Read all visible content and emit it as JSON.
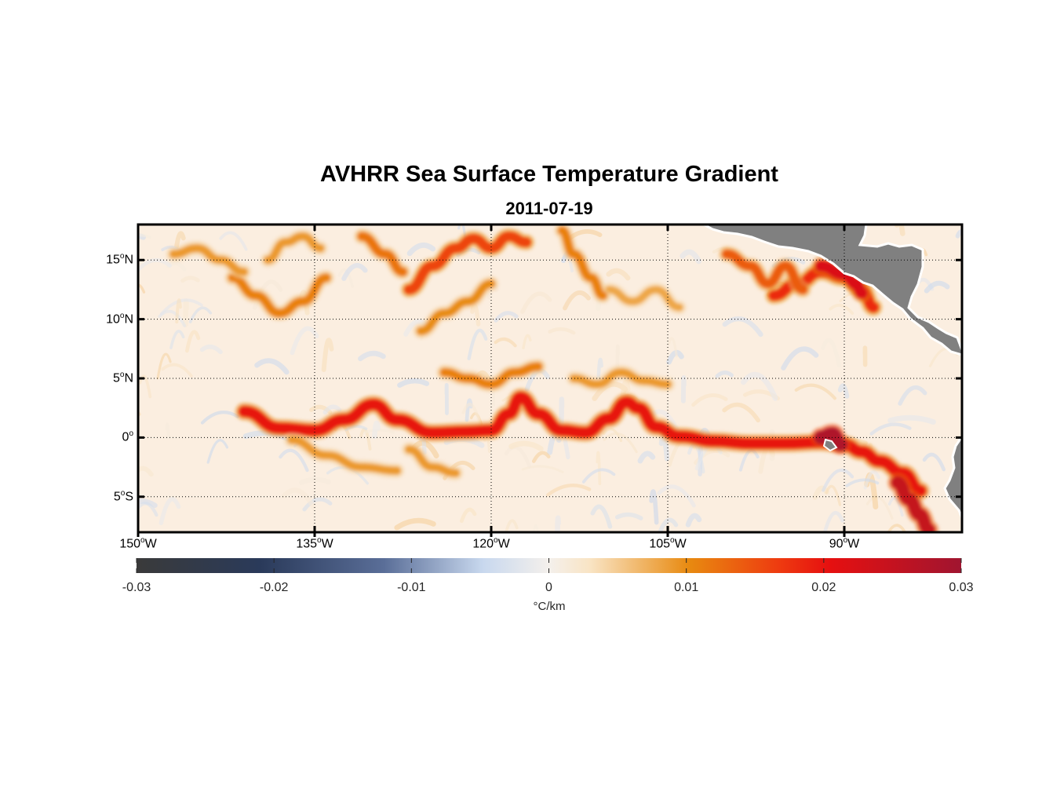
{
  "title": "AVHRR Sea Surface Temperature Gradient",
  "subtitle": "2011-07-19",
  "map": {
    "projection": "equirectangular",
    "lon_range": [
      -150,
      -80
    ],
    "lat_range": [
      -8,
      18
    ],
    "grid": "dotted",
    "land_color": "#808080",
    "lat_ticks": [
      {
        "value": 15,
        "deg": "15",
        "hemi": "N"
      },
      {
        "value": 10,
        "deg": "10",
        "hemi": "N"
      },
      {
        "value": 5,
        "deg": "5",
        "hemi": "N"
      },
      {
        "value": 0,
        "deg": "0",
        "hemi": ""
      },
      {
        "value": -5,
        "deg": "5",
        "hemi": "S"
      }
    ],
    "lon_ticks": [
      {
        "value": -150,
        "deg": "150",
        "hemi": "W"
      },
      {
        "value": -135,
        "deg": "135",
        "hemi": "W"
      },
      {
        "value": -120,
        "deg": "120",
        "hemi": "W"
      },
      {
        "value": -105,
        "deg": "105",
        "hemi": "W"
      },
      {
        "value": -90,
        "deg": "90",
        "hemi": "W"
      }
    ],
    "fronts": [
      {
        "name": "equatorial-front",
        "lon": [
          -141,
          -138,
          -135,
          -132.5,
          -130,
          -128,
          -125,
          -122,
          -120,
          -118.5,
          -117.5,
          -116,
          -114,
          -112,
          -110,
          -108.5,
          -107.5,
          -106,
          -104,
          -101,
          -98,
          -95,
          -92,
          -90,
          -88.5,
          -87,
          -85,
          -83.5
        ],
        "lat": [
          2.2,
          0.8,
          0.6,
          1.5,
          2.8,
          1.5,
          0.4,
          0.5,
          0.6,
          2,
          3.4,
          2,
          0.6,
          0.4,
          1.6,
          3,
          2.5,
          0.9,
          0.1,
          -0.3,
          -0.5,
          -0.5,
          -0.4,
          -0.6,
          -1.2,
          -2,
          -3,
          -4.5
        ],
        "strength": 0.02
      },
      {
        "name": "south-front",
        "lon": [
          -85.5,
          -84.5,
          -83.6,
          -82.8
        ],
        "lat": [
          -3.8,
          -5.2,
          -6.5,
          -7.8
        ],
        "strength": 0.025
      },
      {
        "name": "galapagos-front",
        "lon": [
          -92,
          -91,
          -90.3
        ],
        "lat": [
          0,
          0.3,
          -0.6
        ],
        "strength": 0.028
      },
      {
        "name": "north-front-1",
        "lon": [
          -127,
          -125,
          -123,
          -121.5,
          -120,
          -118.5,
          -117
        ],
        "lat": [
          12.5,
          14.5,
          16,
          16.8,
          16,
          17,
          16.5
        ],
        "strength": 0.016
      },
      {
        "name": "north-front-2",
        "lon": [
          -96,
          -94,
          -92,
          -90,
          -88.5,
          -87.5
        ],
        "lat": [
          12,
          13,
          14,
          13.5,
          12.5,
          11
        ],
        "strength": 0.018
      },
      {
        "name": "north-front-3",
        "lon": [
          -100,
          -98,
          -96.5,
          -95,
          -93.5
        ],
        "lat": [
          15.5,
          14.5,
          13,
          14.5,
          12.5
        ],
        "strength": 0.014
      },
      {
        "name": "north-front-4",
        "lon": [
          -92,
          -90,
          -89,
          -88.5
        ],
        "lat": [
          14.5,
          13.8,
          13,
          12.2
        ],
        "strength": 0.022
      },
      {
        "name": "mid-front-1",
        "lon": [
          -142,
          -140,
          -138,
          -136,
          -134
        ],
        "lat": [
          13.5,
          12,
          10.5,
          11.5,
          13.5
        ],
        "strength": 0.011
      },
      {
        "name": "mid-front-2",
        "lon": [
          -126,
          -124,
          -122,
          -120
        ],
        "lat": [
          9,
          10.5,
          11.5,
          13
        ],
        "strength": 0.01
      },
      {
        "name": "mid-front-3",
        "lon": [
          -124,
          -122,
          -120,
          -118,
          -116
        ],
        "lat": [
          5.5,
          5,
          4.5,
          5.5,
          6
        ],
        "strength": 0.011
      },
      {
        "name": "mid-front-4",
        "lon": [
          -113,
          -111,
          -109,
          -107,
          -105
        ],
        "lat": [
          5,
          4.5,
          5.5,
          4.8,
          4.5
        ],
        "strength": 0.009
      },
      {
        "name": "mid-front-5",
        "lon": [
          -147,
          -145,
          -143,
          -141
        ],
        "lat": [
          15.5,
          16,
          15,
          14
        ],
        "strength": 0.009
      },
      {
        "name": "mid-front-6",
        "lon": [
          -139,
          -137.5,
          -136,
          -134.5
        ],
        "lat": [
          15,
          16.5,
          17,
          16
        ],
        "strength": 0.009
      },
      {
        "name": "mid-front-7",
        "lon": [
          -110,
          -108,
          -106,
          -104
        ],
        "lat": [
          12.5,
          11.5,
          12.5,
          11
        ],
        "strength": 0.008
      },
      {
        "name": "south-eddy-1",
        "lon": [
          -137,
          -134,
          -131,
          -128
        ],
        "lat": [
          -0.2,
          -1.5,
          -2.5,
          -2.8
        ],
        "strength": 0.009
      },
      {
        "name": "south-eddy-2",
        "lon": [
          -127,
          -125,
          -123
        ],
        "lat": [
          -1,
          -2.5,
          -3
        ],
        "strength": 0.009
      },
      {
        "name": "north-front-5",
        "lon": [
          -131,
          -129,
          -127.5
        ],
        "lat": [
          17,
          15.5,
          14
        ],
        "strength": 0.012
      },
      {
        "name": "north-front-6",
        "lon": [
          -114,
          -113,
          -111.5,
          -110.5
        ],
        "lat": [
          17.5,
          15.5,
          13.5,
          12
        ],
        "strength": 0.011
      }
    ]
  },
  "colorbar": {
    "min": -0.03,
    "max": 0.03,
    "tick_values": [
      -0.03,
      -0.02,
      -0.01,
      0,
      0.01,
      0.02,
      0.03
    ],
    "tick_labels": [
      "-0.03",
      "-0.02",
      "-0.01",
      "0",
      "0.01",
      "0.02",
      "0.03"
    ],
    "units": "°C/km",
    "colormap_stops": [
      {
        "v": 0.0,
        "c": "#3a3a3a"
      },
      {
        "v": 0.15,
        "c": "#2a3a5a"
      },
      {
        "v": 0.3,
        "c": "#5a6e98"
      },
      {
        "v": 0.42,
        "c": "#c8d8ee"
      },
      {
        "v": 0.5,
        "c": "#f4f0ec"
      },
      {
        "v": 0.55,
        "c": "#f9e4c4"
      },
      {
        "v": 0.67,
        "c": "#e88a10"
      },
      {
        "v": 0.78,
        "c": "#ee3a10"
      },
      {
        "v": 0.84,
        "c": "#e61010"
      },
      {
        "v": 1.0,
        "c": "#a01530"
      }
    ]
  }
}
